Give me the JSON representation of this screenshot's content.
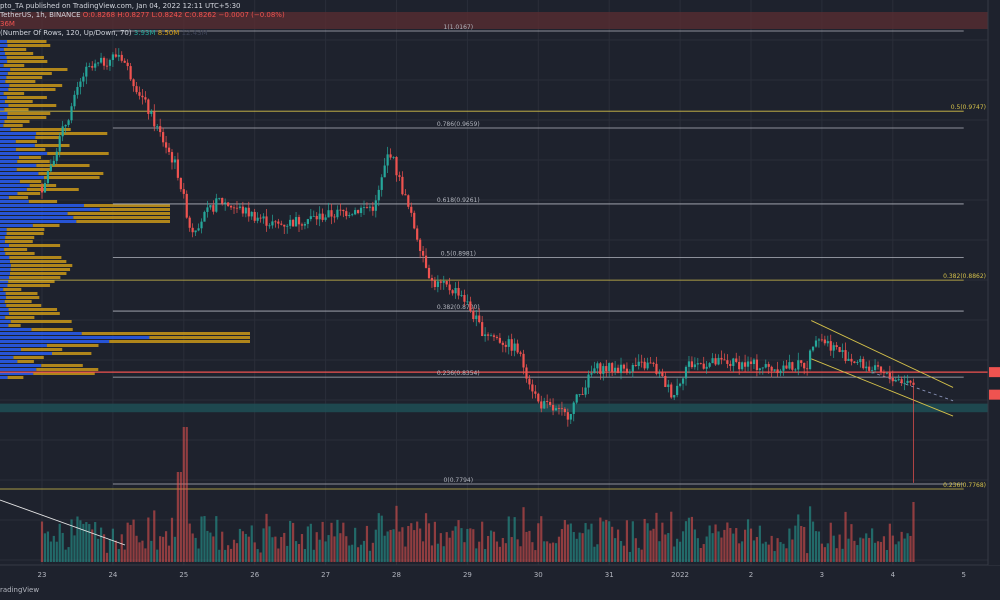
{
  "header": {
    "publish_line": "pto_TA published on TradingView.com, Jan 04, 2022 12:11 UTC+5:30",
    "symbol_line": "TetherUS, 1h, BINANCE",
    "ohlc": "O:0.8268  H:0.8277  L:0.8242  C:0.8262  −0.0007 (−0.08%)",
    "volume_line": "36M",
    "indicator_line": "(Number Of Rows, 120, Up/Down, 70)",
    "indicator_value_1": "3.93M",
    "indicator_value_2": "8.50M",
    "indicator_value_3": "12.43M"
  },
  "footer": {
    "brand": "radingView"
  },
  "colors": {
    "background": "#1e222d",
    "bull": "#26a69a",
    "bear": "#ef5350",
    "fib_white": "#b2b5be",
    "fib_yellow": "#d4c04a",
    "channel": "#d4c04a",
    "red_level": "#ef5350",
    "support_zone": "#1f4f56",
    "vp_up": "#2962ff",
    "vp_down": "#d4a017"
  },
  "chart_data": {
    "type": "candlestick",
    "interval": "1h",
    "x_axis_labels": [
      "23",
      "24",
      "25",
      "26",
      "27",
      "28",
      "29",
      "30",
      "31",
      "2022",
      "2",
      "3",
      "4",
      "5"
    ],
    "price_anchors": [
      {
        "day": 23.0,
        "price": 0.935
      },
      {
        "day": 23.6,
        "price": 0.995
      },
      {
        "day": 24.1,
        "price": 1.005
      },
      {
        "day": 24.5,
        "price": 0.975
      },
      {
        "day": 24.9,
        "price": 0.945
      },
      {
        "day": 25.1,
        "price": 0.912
      },
      {
        "day": 25.5,
        "price": 0.928
      },
      {
        "day": 26.3,
        "price": 0.915
      },
      {
        "day": 27.0,
        "price": 0.92
      },
      {
        "day": 27.7,
        "price": 0.925
      },
      {
        "day": 27.9,
        "price": 0.955
      },
      {
        "day": 28.2,
        "price": 0.92
      },
      {
        "day": 28.5,
        "price": 0.885
      },
      {
        "day": 28.9,
        "price": 0.88
      },
      {
        "day": 29.2,
        "price": 0.86
      },
      {
        "day": 29.7,
        "price": 0.85
      },
      {
        "day": 30.0,
        "price": 0.822
      },
      {
        "day": 30.4,
        "price": 0.815
      },
      {
        "day": 30.8,
        "price": 0.84
      },
      {
        "day": 31.2,
        "price": 0.84
      },
      {
        "day": 31.6,
        "price": 0.842
      },
      {
        "day": 31.9,
        "price": 0.826
      },
      {
        "day": 32.1,
        "price": 0.842
      },
      {
        "day": 32.6,
        "price": 0.843
      },
      {
        "day": 33.0,
        "price": 0.842
      },
      {
        "day": 33.3,
        "price": 0.84
      },
      {
        "day": 33.8,
        "price": 0.842
      },
      {
        "day": 33.9,
        "price": 0.858
      },
      {
        "day": 34.4,
        "price": 0.845
      },
      {
        "day": 34.9,
        "price": 0.836
      },
      {
        "day": 35.3,
        "price": 0.832
      }
    ],
    "last_candle_low": 0.78,
    "fib_levels": [
      {
        "label": "1(1.0167)",
        "price": 1.0167,
        "from_day": 24.0,
        "to_day": 36.0,
        "color": "white"
      },
      {
        "label": "0.786(0.9659)",
        "price": 0.9659,
        "from_day": 24.0,
        "to_day": 36.0,
        "color": "white"
      },
      {
        "label": "0.618(0.9261)",
        "price": 0.9261,
        "from_day": 24.0,
        "to_day": 36.0,
        "color": "white"
      },
      {
        "label": "0.5(0.8981)",
        "price": 0.8981,
        "from_day": 24.0,
        "to_day": 36.0,
        "color": "white"
      },
      {
        "label": "0.382(0.8700)",
        "price": 0.87,
        "from_day": 24.0,
        "to_day": 36.0,
        "color": "white"
      },
      {
        "label": "0.236(0.8354)",
        "price": 0.8354,
        "from_day": 24.0,
        "to_day": 36.0,
        "color": "white"
      },
      {
        "label": "0(0.7794)",
        "price": 0.7794,
        "from_day": 24.0,
        "to_day": 36.0,
        "color": "white"
      },
      {
        "label": "0.5(0.9747)",
        "price": 0.9747,
        "from_day": 22.0,
        "to_day": 36.0,
        "color": "yellow"
      },
      {
        "label": "0.382(0.8862)",
        "price": 0.8862,
        "from_day": 22.0,
        "to_day": 36.0,
        "color": "yellow"
      },
      {
        "label": "0.236(0.7768)",
        "price": 0.7768,
        "from_day": 22.0,
        "to_day": 36.0,
        "color": "yellow"
      }
    ],
    "red_level": 0.838,
    "support_zone": [
      0.817,
      0.8215
    ],
    "channel": {
      "upper": [
        [
          33.85,
          0.865
        ],
        [
          35.85,
          0.83
        ]
      ],
      "lower": [
        [
          33.85,
          0.845
        ],
        [
          35.85,
          0.815
        ]
      ],
      "mid": [
        [
          34.7,
          0.838
        ],
        [
          35.85,
          0.823
        ]
      ]
    },
    "annotations": [
      "0.236(0.8354)"
    ]
  }
}
